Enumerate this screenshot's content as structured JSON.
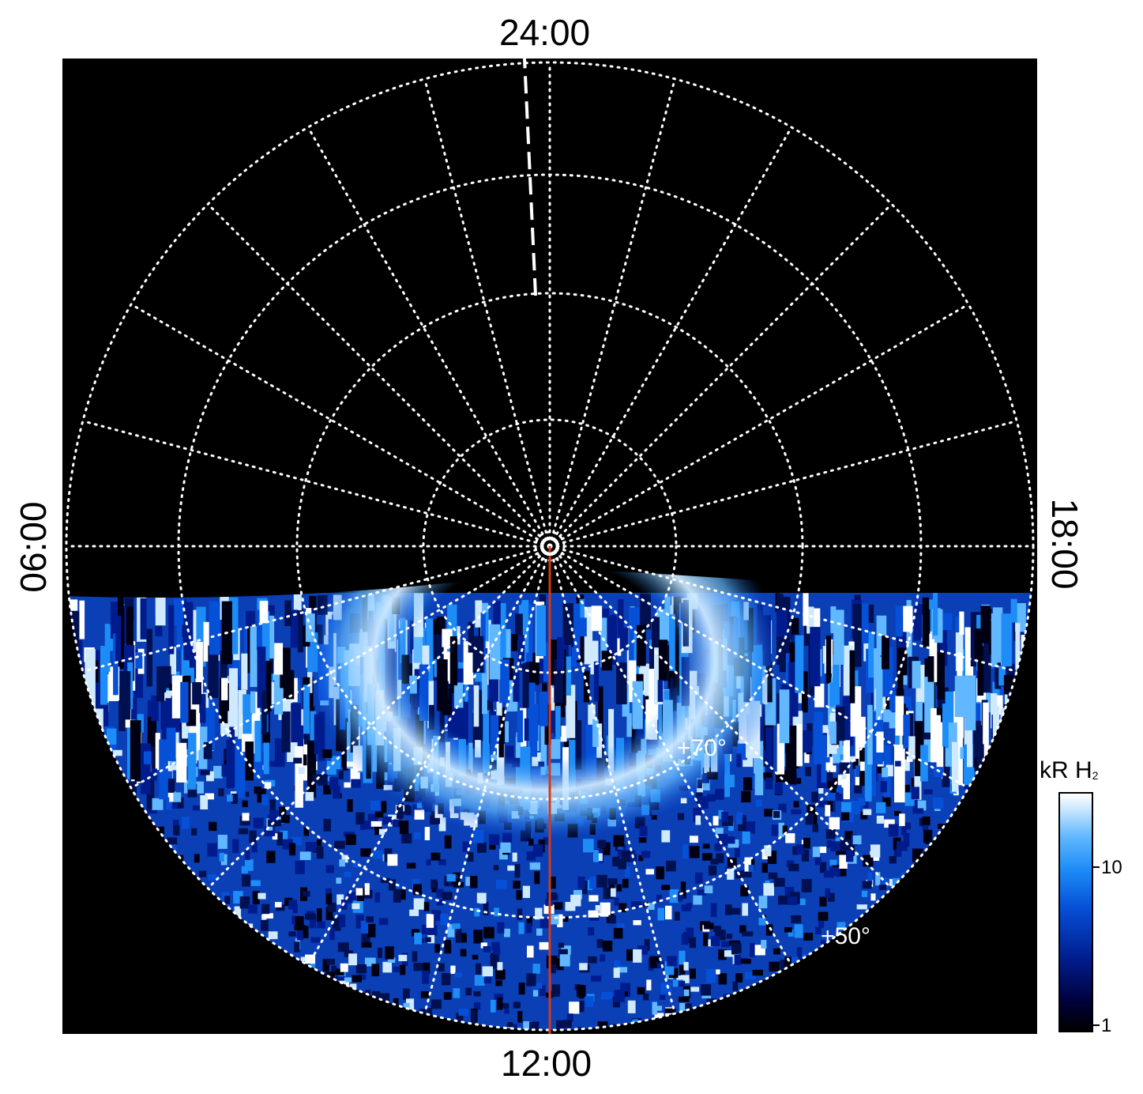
{
  "local_time_labels": {
    "top": "24:00",
    "bottom": "12:00",
    "left": "06:00",
    "right": "18:00"
  },
  "latitude_labels": {
    "inner": "+70°",
    "outer": "+50°"
  },
  "colorbar": {
    "title_main": "kR H",
    "title_sub": "2",
    "tick_labels": [
      "10",
      "1"
    ],
    "scale": "log",
    "range": [
      1,
      30
    ]
  },
  "colors": {
    "background": "#000000",
    "grid": "#ffffff",
    "meridian_line": "#d03a1a",
    "emission_bright": "#ffffff",
    "emission_mid": "#1d8cf6",
    "emission_dim": "#001c8c"
  }
}
